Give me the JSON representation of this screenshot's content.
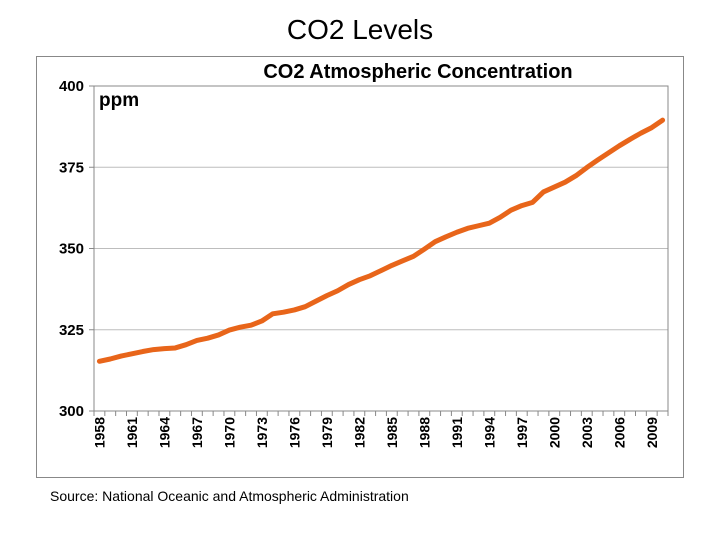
{
  "slide": {
    "title": "CO2 Levels",
    "source": "Source: National Oceanic and Atmospheric Administration"
  },
  "chart_data": {
    "type": "line",
    "title": "CO2 Atmospheric Concentration",
    "unit_label": "ppm",
    "xlabel": "",
    "ylabel": "",
    "ylim": [
      300,
      400
    ],
    "yticks": [
      300,
      325,
      350,
      375,
      400
    ],
    "x_tick_labels": [
      "1958",
      "1961",
      "1964",
      "1967",
      "1970",
      "1973",
      "1976",
      "1979",
      "1982",
      "1985",
      "1988",
      "1991",
      "1994",
      "1997",
      "2000",
      "2003",
      "2006",
      "2009"
    ],
    "grid": true,
    "line_color": "#E8651A",
    "series": [
      {
        "x": [
          1958,
          1959,
          1960,
          1961,
          1962,
          1963,
          1964,
          1965,
          1966,
          1967,
          1968,
          1969,
          1970,
          1971,
          1972,
          1973,
          1974,
          1975,
          1976,
          1977,
          1978,
          1979,
          1980,
          1981,
          1982,
          1983,
          1984,
          1985,
          1986,
          1987,
          1988,
          1989,
          1990,
          1991,
          1992,
          1993,
          1994,
          1995,
          1996,
          1997,
          1998,
          1999,
          2000,
          2001,
          2002,
          2003,
          2004,
          2005,
          2006,
          2007,
          2008,
          2009,
          2010
        ],
        "values": [
          315.3,
          316.0,
          316.9,
          317.6,
          318.3,
          318.9,
          319.2,
          319.4,
          320.4,
          321.7,
          322.4,
          323.4,
          324.9,
          325.8,
          326.4,
          327.7,
          329.9,
          330.4,
          331.1,
          332.1,
          333.8,
          335.5,
          337.0,
          338.9,
          340.4,
          341.6,
          343.2,
          344.8,
          346.2,
          347.6,
          349.8,
          352.1,
          353.6,
          355.0,
          356.2,
          357.0,
          357.8,
          359.6,
          361.8,
          363.2,
          364.2,
          367.4,
          368.9,
          370.4,
          372.4,
          374.9,
          377.2,
          379.4,
          381.6,
          383.6,
          385.5,
          387.2,
          389.5
        ]
      }
    ]
  }
}
